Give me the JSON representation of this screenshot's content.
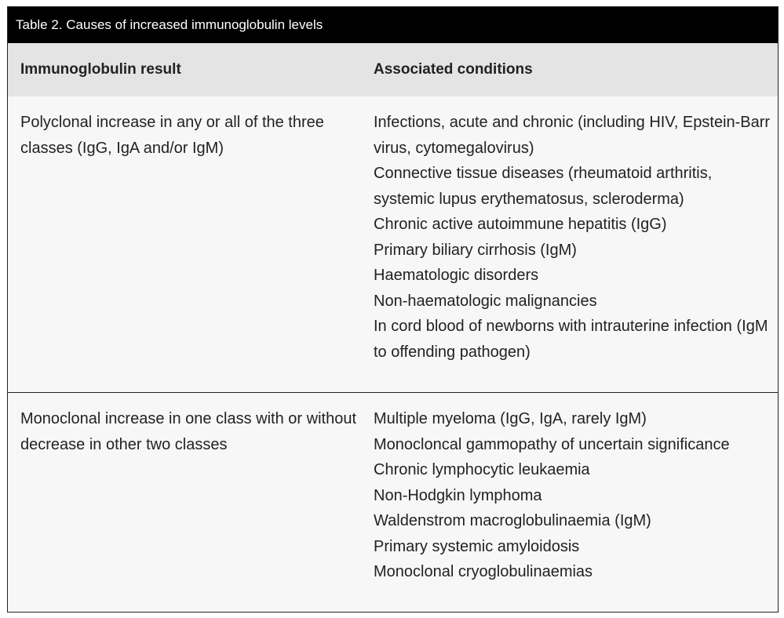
{
  "caption": "Table 2. Causes of increased immunoglobulin levels",
  "headers": {
    "col1": "Immunoglobulin result",
    "col2": "Associated conditions"
  },
  "rows": [
    {
      "result": "Polyclonal increase in any or all of the three classes (IgG, IgA and/or IgM)",
      "conditions": [
        "Infections, acute and chronic (including HIV, Epstein-Barr virus, cytomegalovirus)",
        "Connective tissue diseases (rheumatoid arthritis, systemic lupus erythematosus, scleroderma)",
        "Chronic active autoimmune hepatitis (IgG)",
        "Primary biliary cirrhosis (IgM)",
        "Haematologic disorders",
        "Non-haematologic malignancies",
        "In cord blood of newborns with intrauterine infection (IgM to offending pathogen)"
      ]
    },
    {
      "result": "Monoclonal increase in one class with or without decrease in other two classes",
      "conditions": [
        "Multiple myeloma (IgG, IgA, rarely IgM)",
        "Monocloncal gammopathy of uncertain significance",
        "Chronic lymphocytic leukaemia",
        "Non-Hodgkin lymphoma",
        "Waldenstrom macroglobulinaemia (IgM)",
        "Primary systemic amyloidosis",
        "Monoclonal cryoglobulinaemias"
      ]
    }
  ]
}
